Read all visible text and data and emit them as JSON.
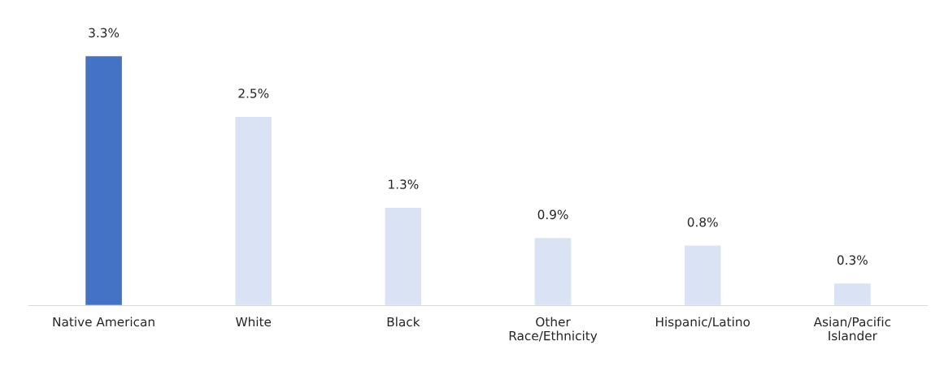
{
  "chart_data": {
    "type": "bar",
    "categories": [
      "Native American",
      "White",
      "Black",
      "Other\nRace/Ethnicity",
      "Hispanic/Latino",
      "Asian/Pacific\nIslander"
    ],
    "values": [
      3.3,
      2.5,
      1.3,
      0.9,
      0.8,
      0.3
    ],
    "colors": [
      "#4472c4",
      "#dae3f3",
      "#dae3f3",
      "#dae3f3",
      "#dae3f3",
      "#dae3f3"
    ],
    "value_labels": [
      "3.3%",
      "2.5%",
      "1.3%",
      "0.9%",
      "0.8%",
      "0.3%"
    ],
    "grid": false,
    "legend": false
  }
}
